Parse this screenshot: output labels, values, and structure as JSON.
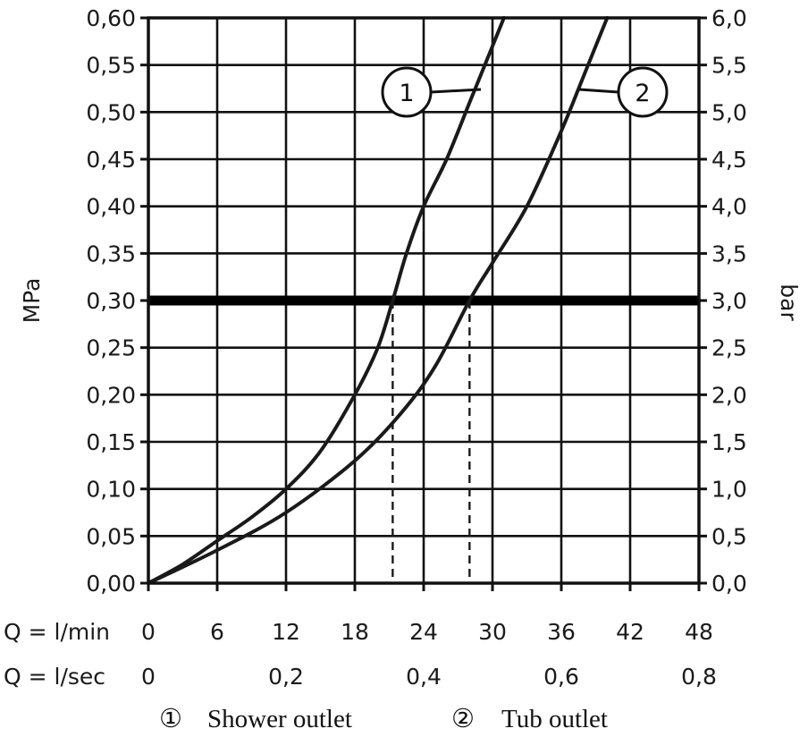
{
  "chart_data": {
    "type": "line",
    "ylabel_left": "MPa",
    "ylabel_right": "bar",
    "x_axis_label": "Q = l/min",
    "x_axis_label_secondary": "Q = l/sec",
    "xlim": [
      0,
      48
    ],
    "ylim": [
      0,
      0.6
    ],
    "grid": true,
    "x_ticks": [
      "0",
      "6",
      "12",
      "18",
      "24",
      "30",
      "36",
      "42",
      "48"
    ],
    "x_ticks_secondary": [
      {
        "x": 0,
        "label": "0"
      },
      {
        "x": 12,
        "label": "0,2"
      },
      {
        "x": 24,
        "label": "0,4"
      },
      {
        "x": 36,
        "label": "0,6"
      },
      {
        "x": 48,
        "label": "0,8"
      }
    ],
    "y_ticks_left": [
      "0,00",
      "0,05",
      "0,10",
      "0,15",
      "0,20",
      "0,25",
      "0,30",
      "0,35",
      "0,40",
      "0,45",
      "0,50",
      "0,55",
      "0,60"
    ],
    "y_ticks_right": [
      "0,0",
      "0,5",
      "1,0",
      "1,5",
      "2,0",
      "2,5",
      "3,0",
      "3,5",
      "4,0",
      "4,5",
      "5,0",
      "5,5",
      "6,0"
    ],
    "reference_line": {
      "y": 0.3
    },
    "series": [
      {
        "name": "Shower outlet",
        "marker": "1",
        "points": [
          [
            0,
            0
          ],
          [
            3,
            0.02
          ],
          [
            6,
            0.045
          ],
          [
            9,
            0.07
          ],
          [
            12,
            0.1
          ],
          [
            15,
            0.14
          ],
          [
            18,
            0.2
          ],
          [
            20,
            0.25
          ],
          [
            21.3,
            0.3
          ],
          [
            22.5,
            0.35
          ],
          [
            24,
            0.4
          ],
          [
            26,
            0.45
          ],
          [
            28,
            0.51
          ],
          [
            30,
            0.57
          ],
          [
            31,
            0.6
          ]
        ],
        "operating_point": [
          21.3,
          0.3
        ]
      },
      {
        "name": "Tub outlet",
        "marker": "2",
        "points": [
          [
            0,
            0
          ],
          [
            6,
            0.035
          ],
          [
            12,
            0.075
          ],
          [
            18,
            0.13
          ],
          [
            22,
            0.18
          ],
          [
            25,
            0.23
          ],
          [
            28,
            0.3
          ],
          [
            30,
            0.34
          ],
          [
            33,
            0.4
          ],
          [
            36,
            0.48
          ],
          [
            38,
            0.54
          ],
          [
            40,
            0.6
          ]
        ],
        "operating_point": [
          28,
          0.3
        ]
      }
    ],
    "legend": {
      "placement": "bottom",
      "entries": [
        {
          "marker": "①",
          "label": "Shower outlet"
        },
        {
          "marker": "②",
          "label": "Tub outlet"
        }
      ]
    }
  }
}
